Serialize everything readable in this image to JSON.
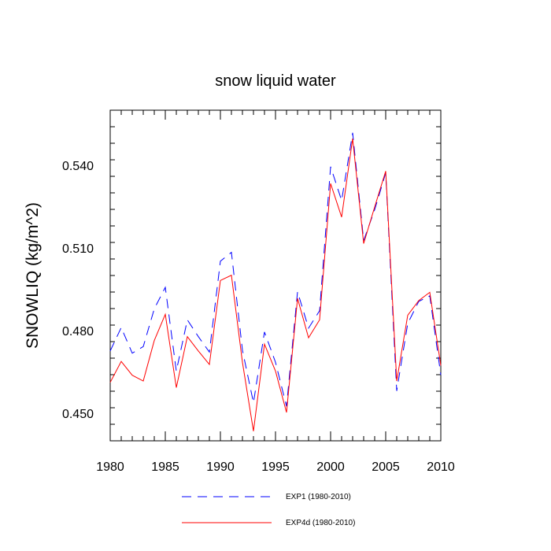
{
  "chart_data": {
    "type": "line",
    "title": "snow liquid water",
    "xlabel": "",
    "ylabel": "SNOWLIQ  (kg/m^2)",
    "xlim": [
      1980,
      2010
    ],
    "ylim": [
      0.44,
      0.56
    ],
    "x_ticks": [
      1980,
      1985,
      1990,
      1995,
      2000,
      2005,
      2010
    ],
    "y_ticks": [
      0.45,
      0.48,
      0.51,
      0.54
    ],
    "y_tick_labels": [
      "0.450",
      "0.480",
      "0.510",
      "0.540"
    ],
    "x": [
      1980,
      1981,
      1982,
      1983,
      1984,
      1985,
      1986,
      1987,
      1988,
      1989,
      1990,
      1991,
      1992,
      1993,
      1994,
      1995,
      1996,
      1997,
      1998,
      1999,
      2000,
      2001,
      2002,
      2003,
      2004,
      2005,
      2006,
      2007,
      2008,
      2009,
      2010
    ],
    "series": [
      {
        "name": "EXP1 (1980-2010)",
        "color": "#0000ff",
        "dash": "dashed",
        "values": [
          0.4726,
          0.4811,
          0.4718,
          0.4742,
          0.4879,
          0.4957,
          0.4653,
          0.4839,
          0.4778,
          0.4722,
          0.5052,
          0.5084,
          0.4729,
          0.4538,
          0.4795,
          0.4685,
          0.4525,
          0.4941,
          0.4809,
          0.4872,
          0.5395,
          0.5272,
          0.5518,
          0.5127,
          0.5239,
          0.5372,
          0.4581,
          0.4826,
          0.4906,
          0.4926,
          0.4639
        ]
      },
      {
        "name": "EXP4d (1980-2010)",
        "color": "#ff0000",
        "dash": "solid",
        "values": [
          0.4612,
          0.4688,
          0.4638,
          0.4617,
          0.4764,
          0.4859,
          0.4593,
          0.4778,
          0.4726,
          0.4677,
          0.4982,
          0.5001,
          0.4685,
          0.4435,
          0.4751,
          0.4653,
          0.4503,
          0.4917,
          0.4774,
          0.4839,
          0.5334,
          0.5212,
          0.5497,
          0.5116,
          0.5249,
          0.5379,
          0.4617,
          0.4856,
          0.4909,
          0.4939,
          0.4673
        ]
      }
    ],
    "grid": false,
    "legend": "bottom"
  }
}
